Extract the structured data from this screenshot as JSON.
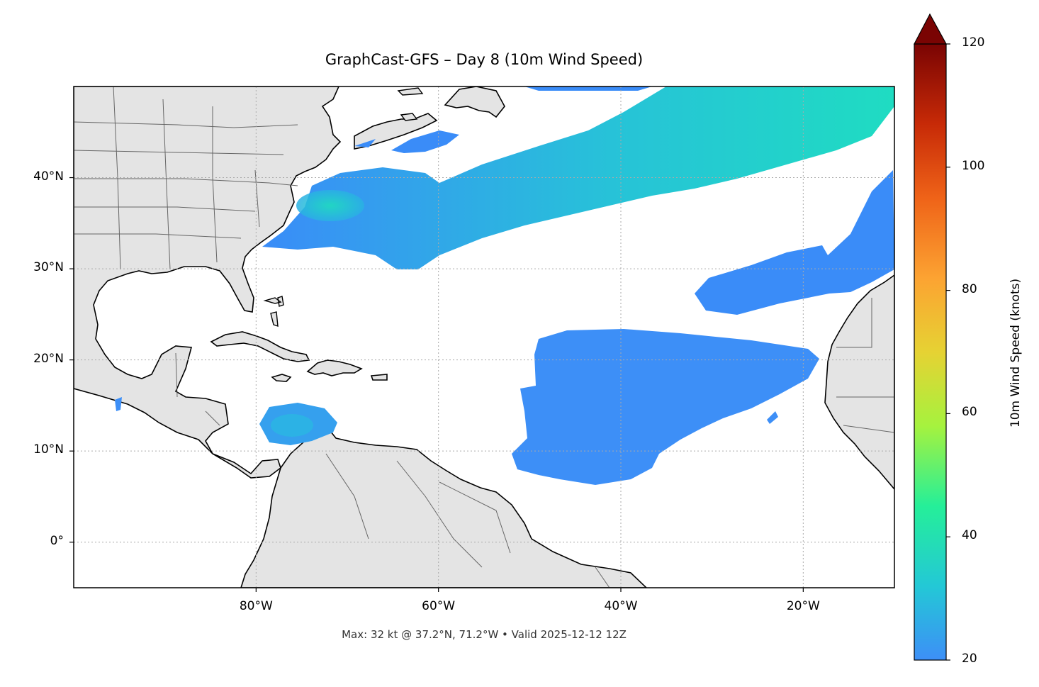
{
  "title": "GraphCast-GFS – Day 8 (10m Wind Speed)",
  "footer": "Max: 32 kt @ 37.2°N, 71.2°W • Valid 2025-12-12 12Z",
  "map": {
    "extent": {
      "lon_min": -100,
      "lon_max": -10,
      "lat_min": -5,
      "lat_max": 50
    },
    "lat_ticks": [
      {
        "value": 40,
        "label": "40°N"
      },
      {
        "value": 30,
        "label": "30°N"
      },
      {
        "value": 20,
        "label": "20°N"
      },
      {
        "value": 10,
        "label": "10°N"
      },
      {
        "value": 0,
        "label": "0°"
      }
    ],
    "lon_ticks": [
      {
        "value": -80,
        "label": "80°W"
      },
      {
        "value": -60,
        "label": "60°W"
      },
      {
        "value": -40,
        "label": "40°W"
      },
      {
        "value": -20,
        "label": "20°W"
      }
    ],
    "gridlines": "dotted",
    "land_color": "#e4e4e4",
    "ocean_color": "#ffffff",
    "coastline_color": "#000000",
    "border_color": "#666666"
  },
  "colorbar": {
    "label": "10m Wind Speed (knots)",
    "min": 20,
    "max": 120,
    "extend": "max",
    "ticks": [
      "20",
      "40",
      "60",
      "80",
      "100",
      "120"
    ],
    "colors": [
      "#3d8ff7",
      "#23c8d6",
      "#25ef99",
      "#a6f23e",
      "#e6d233",
      "#fca332",
      "#ef6318",
      "#c72a07",
      "#941004",
      "#7a0403"
    ]
  }
}
